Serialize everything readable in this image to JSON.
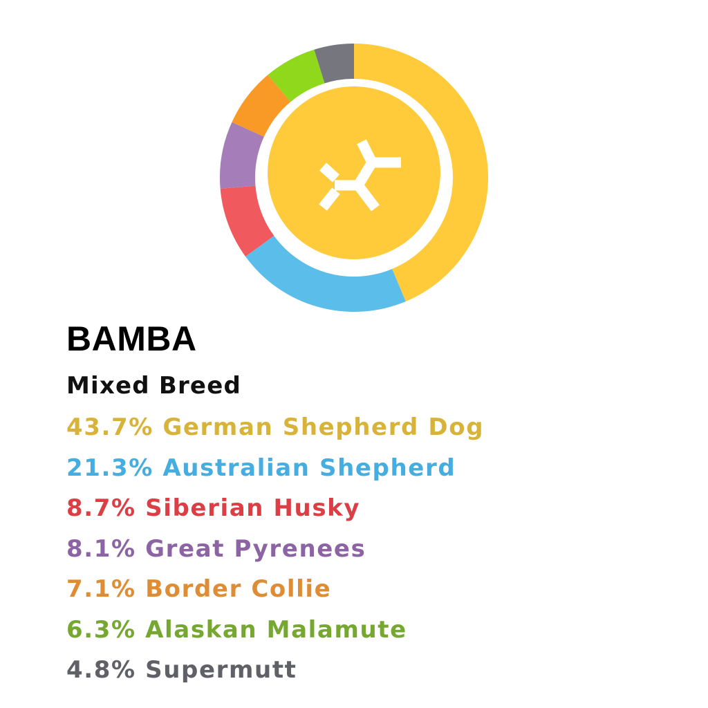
{
  "dog": {
    "name": "BAMBA",
    "breed_type": "Mixed Breed"
  },
  "breakdown_lines": [
    "43.7% German Shepherd Dog",
    "21.3% Australian Shepherd",
    "8.7% Siberian Husky",
    "8.1% Great Pyrenees",
    "7.1% Border Collie",
    "6.3% Alaskan Malamute",
    "4.8% Supermutt"
  ],
  "center_icon": "embark-logo-icon",
  "colors": {
    "center_circle": "#FFCB3B",
    "logo_mark": "#FFFFFF"
  },
  "chart_data": {
    "type": "pie",
    "donut": true,
    "legend": "below",
    "slices": [
      {
        "label": "German Shepherd Dog",
        "value": 43.7,
        "color": "#FFCB3B",
        "text_color": "#D8B33A"
      },
      {
        "label": "Australian Shepherd",
        "value": 21.3,
        "color": "#5BBDEA",
        "text_color": "#45ADE0"
      },
      {
        "label": "Siberian Husky",
        "value": 8.7,
        "color": "#F05A5F",
        "text_color": "#DB3F45"
      },
      {
        "label": "Great Pyrenees",
        "value": 8.1,
        "color": "#A57DB8",
        "text_color": "#8D64A3"
      },
      {
        "label": "Border Collie",
        "value": 7.1,
        "color": "#F99A26",
        "text_color": "#DE8D34"
      },
      {
        "label": "Alaskan Malamute",
        "value": 6.3,
        "color": "#8FD81C",
        "text_color": "#76A831"
      },
      {
        "label": "Supermutt",
        "value": 4.8,
        "color": "#75767E",
        "text_color": "#606067"
      }
    ]
  }
}
